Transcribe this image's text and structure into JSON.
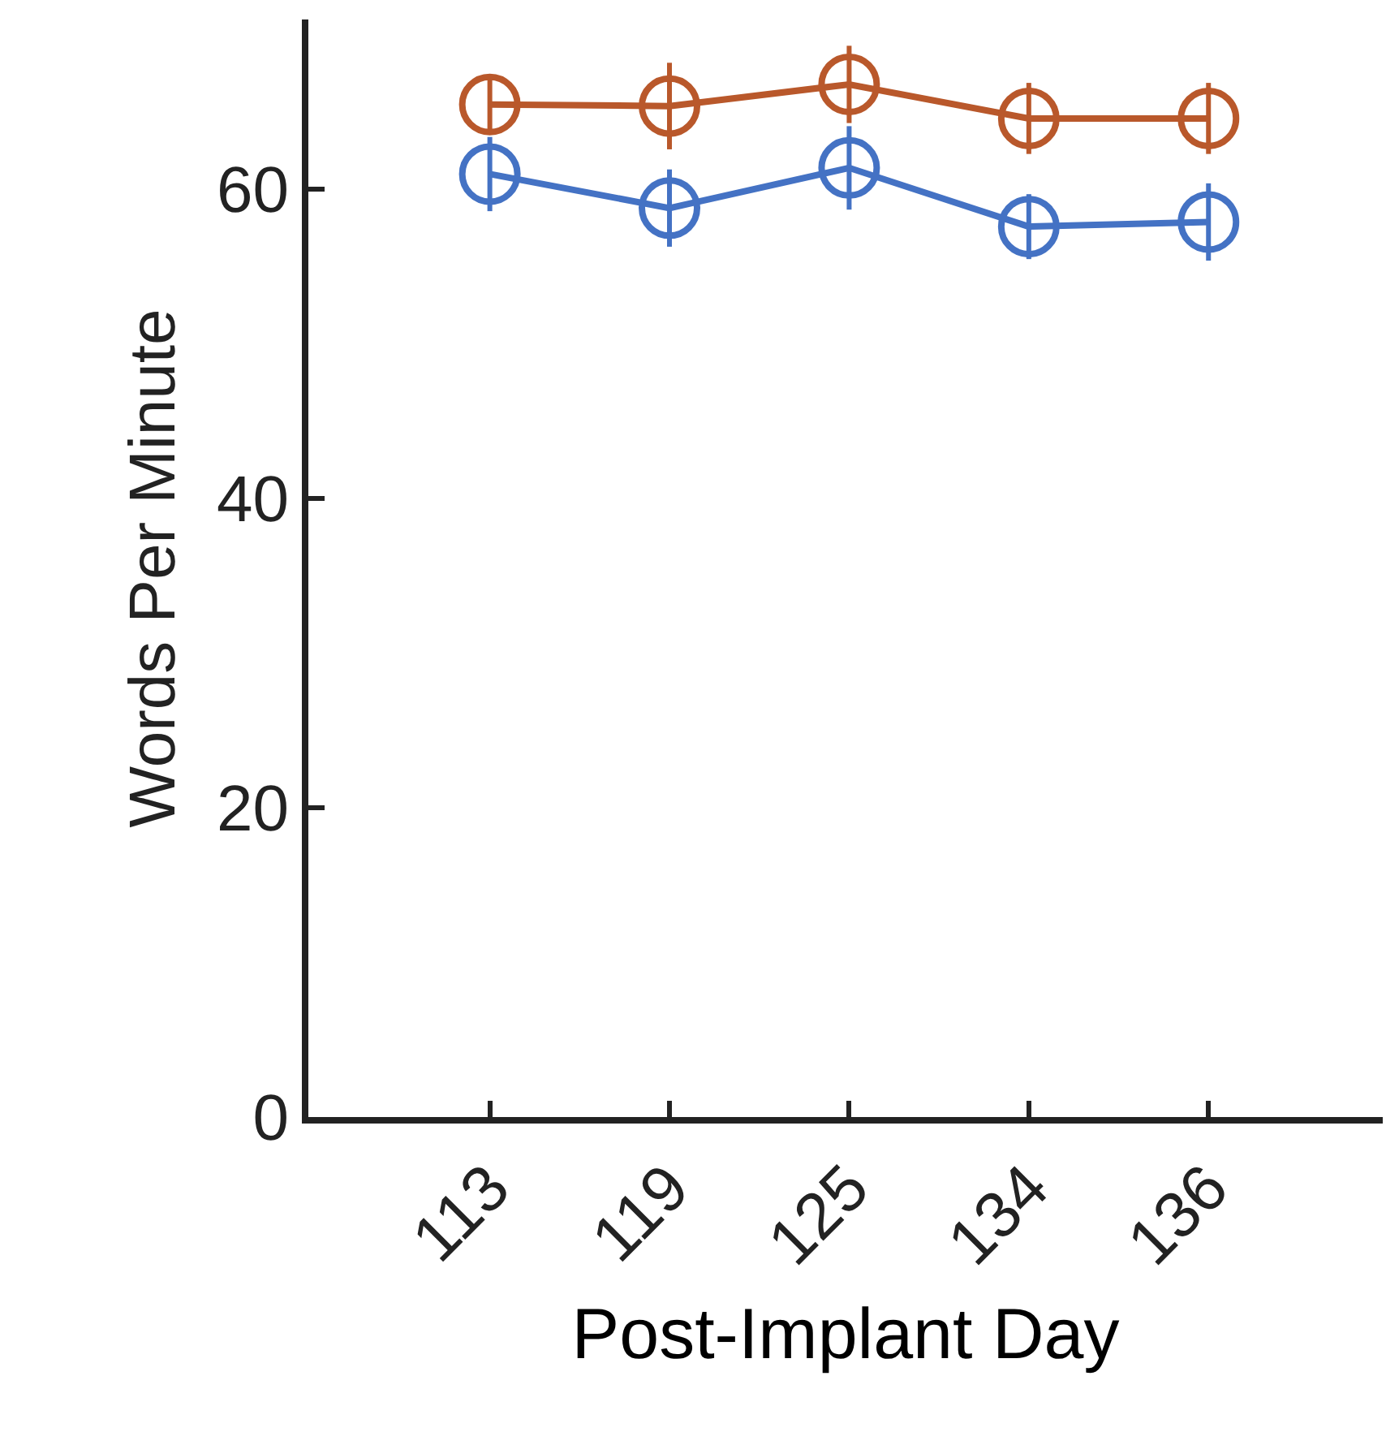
{
  "chart_data": {
    "type": "line",
    "xlabel": "Post-Implant Day",
    "ylabel": "Words Per Minute",
    "categories": [
      "113",
      "119",
      "125",
      "134",
      "136"
    ],
    "series": [
      {
        "color": "#b9582b",
        "values": [
          65.5,
          65.4,
          66.8,
          64.6,
          64.6
        ],
        "errors": [
          1.8,
          2.8,
          2.5,
          2.3,
          2.3
        ]
      },
      {
        "color": "#4472c4",
        "values": [
          61.0,
          58.8,
          61.4,
          57.6,
          57.9
        ],
        "errors": [
          2.4,
          2.5,
          2.7,
          2.1,
          2.5
        ]
      }
    ],
    "ylim": [
      0,
      71
    ],
    "yticks": [
      0,
      20,
      40,
      60
    ],
    "marker": "circle",
    "line_style": "solid",
    "grid": false
  }
}
